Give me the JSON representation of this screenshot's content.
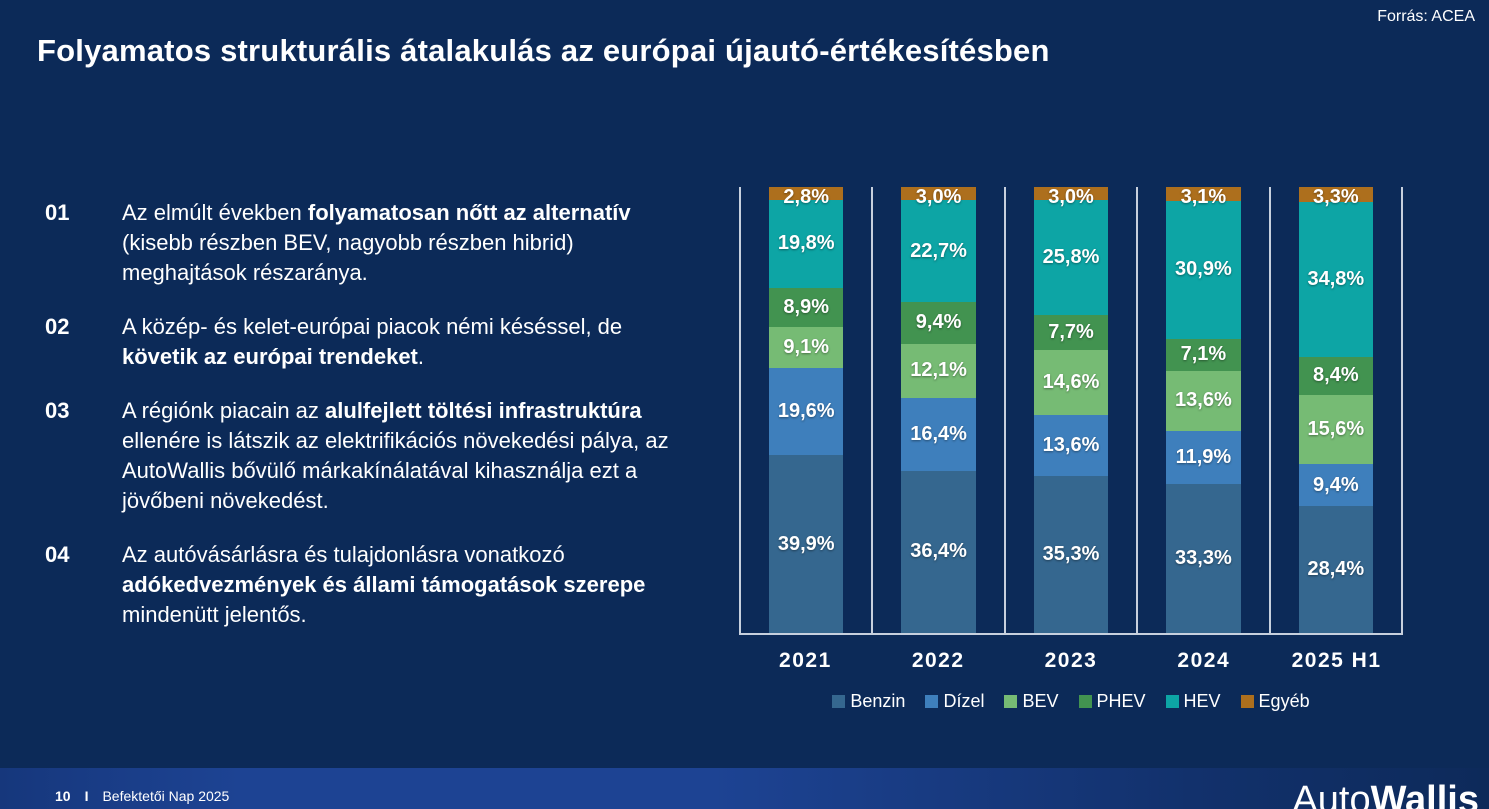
{
  "source": "Forrás: ACEA",
  "title": "Folyamatos strukturális átalakulás az európai újautó-értékesítésben",
  "points": [
    {
      "num": "01",
      "segments": [
        {
          "text": "Az elmúlt években ",
          "bold": false
        },
        {
          "text": "folyamatosan nőtt az alternatív",
          "bold": true
        },
        {
          "text": " (kisebb részben BEV, nagyobb részben hibrid) meghajtások részaránya.",
          "bold": false
        }
      ]
    },
    {
      "num": "02",
      "segments": [
        {
          "text": "A közép- és kelet-európai piacok némi késéssel, de ",
          "bold": false
        },
        {
          "text": "követik az európai trendeket",
          "bold": true
        },
        {
          "text": ".",
          "bold": false
        }
      ]
    },
    {
      "num": "03",
      "segments": [
        {
          "text": "A régiónk piacain az ",
          "bold": false
        },
        {
          "text": "alulfejlett töltési infrastruktúra",
          "bold": true
        },
        {
          "text": " ellenére is látszik az elektrifikációs növekedési pálya, az AutoWallis bővülő márkakínálatával kihasználja ezt a jövőbeni növekedést.",
          "bold": false
        }
      ]
    },
    {
      "num": "04",
      "segments": [
        {
          "text": "Az autóvásárlásra és tulajdonlásra vonatkozó ",
          "bold": false
        },
        {
          "text": "adókedvezmények és állami támogatások szerepe",
          "bold": true
        },
        {
          "text": " mindenütt jelentős.",
          "bold": false
        }
      ]
    }
  ],
  "chart_data": {
    "type": "bar",
    "stacked": true,
    "value_unit": "%",
    "ylim": [
      0,
      100
    ],
    "legend_position": "bottom",
    "axis_line_color": "#c7d0de",
    "categories": [
      "2021",
      "2022",
      "2023",
      "2024",
      "2025 H1"
    ],
    "series": [
      {
        "name": "Benzin",
        "color": "#35678f",
        "values": [
          39.9,
          36.4,
          35.3,
          33.3,
          28.4
        ],
        "labels": [
          "39,9%",
          "36,4%",
          "35,3%",
          "33,3%",
          "28,4%"
        ]
      },
      {
        "name": "Dízel",
        "color": "#3e7fbc",
        "values": [
          19.6,
          16.4,
          13.6,
          11.9,
          9.4
        ],
        "labels": [
          "19,6%",
          "16,4%",
          "13,6%",
          "11,9%",
          "9,4%"
        ]
      },
      {
        "name": "BEV",
        "color": "#76bb74",
        "values": [
          9.1,
          12.1,
          14.6,
          13.6,
          15.6
        ],
        "labels": [
          "9,1%",
          "12,1%",
          "14,6%",
          "13,6%",
          "15,6%"
        ]
      },
      {
        "name": "PHEV",
        "color": "#429350",
        "values": [
          8.9,
          9.4,
          7.7,
          7.1,
          8.4
        ],
        "labels": [
          "8,9%",
          "9,4%",
          "7,7%",
          "7,1%",
          "8,4%"
        ]
      },
      {
        "name": "HEV",
        "color": "#0da5a5",
        "values": [
          19.8,
          22.7,
          25.8,
          30.9,
          34.8
        ],
        "labels": [
          "19,8%",
          "22,7%",
          "25,8%",
          "30,9%",
          "34,8%"
        ]
      },
      {
        "name": "Egyéb",
        "color": "#ad6f1d",
        "values": [
          2.8,
          3.0,
          3.0,
          3.1,
          3.3
        ],
        "labels": [
          "2,8%",
          "3,0%",
          "3,0%",
          "3,1%",
          "3,3%"
        ]
      }
    ]
  },
  "footer": {
    "page": "10",
    "sep": "I",
    "label": "Befektetői Nap 2025"
  },
  "logo": {
    "light": "Auto",
    "bold": "Wallis"
  }
}
